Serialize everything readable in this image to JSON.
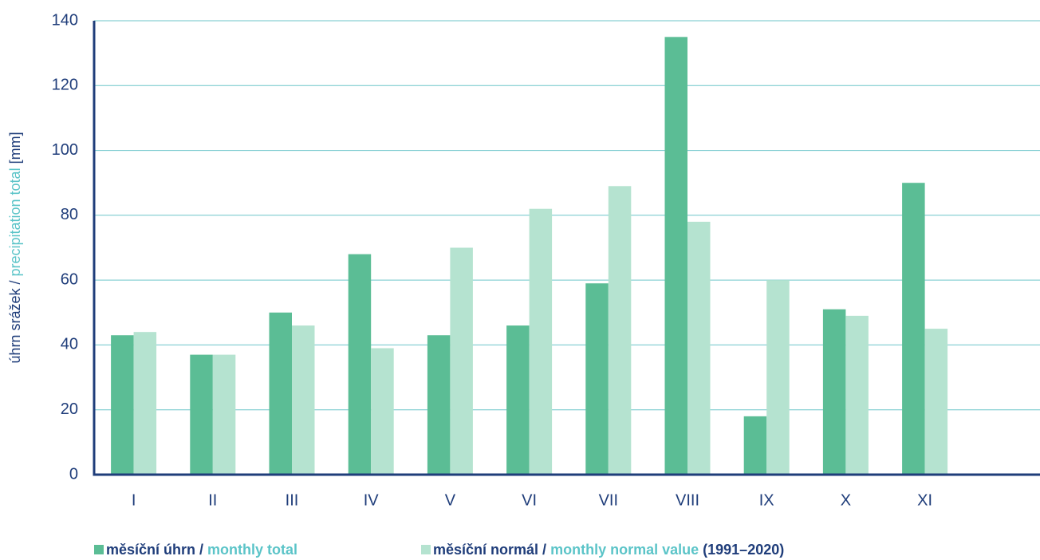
{
  "chart_data": {
    "type": "bar",
    "ylabel": [
      "úhrn srážek /",
      "precipitation total",
      "[mm]"
    ],
    "categories": [
      "I",
      "II",
      "III",
      "IV",
      "V",
      "VI",
      "VII",
      "VIII",
      "IX",
      "X",
      "XI",
      null
    ],
    "series": [
      {
        "name": [
          "měsíční úhrn /",
          "monthly total"
        ],
        "color": "#5bbd95",
        "values": [
          43,
          37,
          50,
          68,
          43,
          46,
          59,
          135,
          18,
          51,
          90,
          null
        ]
      },
      {
        "name": [
          "měsíční normál /",
          "monthly normal value",
          "(1991–2020)"
        ],
        "color": "#b5e3d0",
        "values": [
          44,
          37,
          46,
          39,
          70,
          82,
          89,
          78,
          60,
          49,
          45,
          null
        ]
      }
    ],
    "ylim": [
      0,
      140
    ],
    "yticks": [
      0,
      20,
      40,
      60,
      80,
      100,
      120,
      140
    ],
    "grid": true,
    "legend": "bottom"
  }
}
